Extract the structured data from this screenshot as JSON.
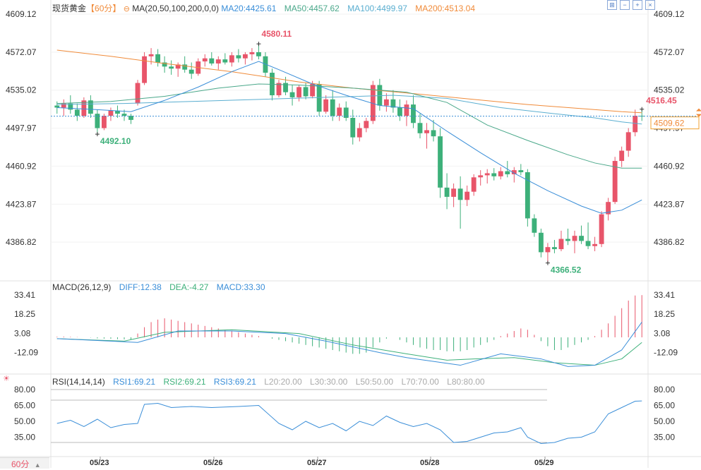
{
  "header": {
    "symbol": "现货黄金",
    "period_tag": "【60分】",
    "ma_label": "MA(20,50,100,200,0,0)",
    "ma20": "MA20:4425.61",
    "ma50": "MA50:4457.62",
    "ma100": "MA100:4499.97",
    "ma200": "MA200:4513.04"
  },
  "macd_header": {
    "label": "MACD(26,12,9)",
    "diff": "DIFF:12.38",
    "dea": "DEA:-4.27",
    "macd": "MACD:33.30"
  },
  "rsi_header": {
    "label": "RSI(14,14,14)",
    "rsi1": "RSI1:69.21",
    "rsi2": "RSI2:69.21",
    "rsi3": "RSI3:69.21",
    "l20": "L20:20.00",
    "l30": "L30:30.00",
    "l50": "L50:50.00",
    "l70": "L70:70.00",
    "l80": "L80:80.00"
  },
  "period_button": "60分",
  "current_price": "4509.62",
  "colors": {
    "up": "#e8556a",
    "down": "#3db07a",
    "ma20": "#3a8ed8",
    "ma50": "#4aa88a",
    "ma100": "#5aaed0",
    "ma200": "#f08b3a",
    "diff": "#3a8ed8",
    "dea": "#3db07a",
    "rsi": "#3a8ed8"
  },
  "chart_data": [
    {
      "type": "candlestick",
      "y_ticks": [
        "4609.12",
        "4572.07",
        "4535.02",
        "4497.97",
        "4460.92",
        "4423.87",
        "4386.82"
      ],
      "ylim": [
        4349.77,
        4609.12
      ],
      "x_labels": [
        "05/23",
        "05/26",
        "05/27",
        "05/28",
        "05/29"
      ],
      "annotations": [
        {
          "text": "4580.11",
          "value": 4580.11,
          "kind": "high"
        },
        {
          "text": "4492.10",
          "value": 4492.1,
          "kind": "low"
        },
        {
          "text": "4516.45",
          "value": 4516.45,
          "kind": "high"
        },
        {
          "text": "4366.52",
          "value": 4366.52,
          "kind": "low"
        }
      ],
      "last_price": 4509.62,
      "candles": [
        [
          4520,
          4524,
          4512,
          4518
        ],
        [
          4518,
          4526,
          4510,
          4522
        ],
        [
          4522,
          4530,
          4512,
          4516
        ],
        [
          4516,
          4522,
          4505,
          4510
        ],
        [
          4510,
          4528,
          4508,
          4525
        ],
        [
          4525,
          4530,
          4508,
          4512
        ],
        [
          4512,
          4516,
          4492,
          4498
        ],
        [
          4498,
          4512,
          4496,
          4510
        ],
        [
          4510,
          4518,
          4505,
          4515
        ],
        [
          4515,
          4520,
          4508,
          4512
        ],
        [
          4512,
          4516,
          4505,
          4510
        ],
        [
          4510,
          4512,
          4502,
          4506
        ],
        [
          4522,
          4545,
          4520,
          4542
        ],
        [
          4542,
          4572,
          4540,
          4568
        ],
        [
          4568,
          4576,
          4560,
          4570
        ],
        [
          4570,
          4575,
          4558,
          4562
        ],
        [
          4562,
          4568,
          4552,
          4558
        ],
        [
          4558,
          4564,
          4550,
          4556
        ],
        [
          4556,
          4562,
          4548,
          4560
        ],
        [
          4560,
          4568,
          4552,
          4555
        ],
        [
          4555,
          4562,
          4546,
          4551
        ],
        [
          4551,
          4566,
          4549,
          4563
        ],
        [
          4563,
          4570,
          4558,
          4566
        ],
        [
          4566,
          4572,
          4559,
          4561
        ],
        [
          4561,
          4568,
          4555,
          4565
        ],
        [
          4565,
          4571,
          4560,
          4562
        ],
        [
          4562,
          4572,
          4558,
          4569
        ],
        [
          4569,
          4575,
          4562,
          4566
        ],
        [
          4566,
          4572,
          4560,
          4570
        ],
        [
          4570,
          4576,
          4564,
          4572
        ],
        [
          4572,
          4580,
          4565,
          4568
        ],
        [
          4568,
          4572,
          4548,
          4552
        ],
        [
          4552,
          4556,
          4525,
          4530
        ],
        [
          4530,
          4545,
          4528,
          4542
        ],
        [
          4542,
          4548,
          4530,
          4533
        ],
        [
          4533,
          4540,
          4520,
          4528
        ],
        [
          4528,
          4540,
          4524,
          4538
        ],
        [
          4538,
          4542,
          4526,
          4529
        ],
        [
          4529,
          4544,
          4527,
          4541
        ],
        [
          4541,
          4544,
          4510,
          4514
        ],
        [
          4514,
          4530,
          4512,
          4526
        ],
        [
          4526,
          4535,
          4505,
          4510
        ],
        [
          4510,
          4522,
          4505,
          4518
        ],
        [
          4518,
          4524,
          4505,
          4508
        ],
        [
          4508,
          4516,
          4482,
          4489
        ],
        [
          4489,
          4503,
          4485,
          4498
        ],
        [
          4498,
          4508,
          4494,
          4505
        ],
        [
          4505,
          4544,
          4502,
          4540
        ],
        [
          4540,
          4546,
          4515,
          4520
        ],
        [
          4520,
          4532,
          4514,
          4526
        ],
        [
          4526,
          4535,
          4513,
          4518
        ],
        [
          4518,
          4526,
          4505,
          4510
        ],
        [
          4510,
          4525,
          4500,
          4521
        ],
        [
          4521,
          4530,
          4498,
          4503
        ],
        [
          4503,
          4512,
          4488,
          4493
        ],
        [
          4493,
          4503,
          4478,
          4496
        ],
        [
          4496,
          4506,
          4485,
          4490
        ],
        [
          4490,
          4498,
          4430,
          4440
        ],
        [
          4440,
          4454,
          4419,
          4431
        ],
        [
          4431,
          4444,
          4421,
          4439
        ],
        [
          4439,
          4451,
          4400,
          4428
        ],
        [
          4428,
          4442,
          4422,
          4436
        ],
        [
          4436,
          4453,
          4432,
          4450
        ],
        [
          4450,
          4457,
          4442,
          4452
        ],
        [
          4452,
          4458,
          4444,
          4454
        ],
        [
          4454,
          4459,
          4447,
          4451
        ],
        [
          4451,
          4460,
          4448,
          4456
        ],
        [
          4456,
          4466,
          4450,
          4453
        ],
        [
          4453,
          4460,
          4445,
          4457
        ],
        [
          4457,
          4463,
          4452,
          4455
        ],
        [
          4455,
          4458,
          4402,
          4410
        ],
        [
          4410,
          4414,
          4392,
          4396
        ],
        [
          4396,
          4400,
          4372,
          4377
        ],
        [
          4377,
          4386,
          4367,
          4382
        ],
        [
          4382,
          4389,
          4376,
          4380
        ],
        [
          4380,
          4398,
          4378,
          4390
        ],
        [
          4390,
          4400,
          4384,
          4388
        ],
        [
          4388,
          4398,
          4376,
          4393
        ],
        [
          4393,
          4403,
          4385,
          4388
        ],
        [
          4388,
          4406,
          4380,
          4383
        ],
        [
          4383,
          4392,
          4378,
          4385
        ],
        [
          4385,
          4417,
          4382,
          4414
        ],
        [
          4414,
          4430,
          4408,
          4426
        ],
        [
          4426,
          4470,
          4424,
          4466
        ],
        [
          4466,
          4480,
          4460,
          4476
        ],
        [
          4476,
          4498,
          4470,
          4494
        ],
        [
          4494,
          4516,
          4490,
          4510
        ],
        [
          4510,
          4516,
          4505,
          4509.62
        ]
      ],
      "ma20": [
        [
          0,
          4518
        ],
        [
          6,
          4516
        ],
        [
          11,
          4514
        ],
        [
          16,
          4525
        ],
        [
          21,
          4538
        ],
        [
          26,
          4553
        ],
        [
          30,
          4563
        ],
        [
          33,
          4555
        ],
        [
          38,
          4541
        ],
        [
          43,
          4530
        ],
        [
          48,
          4520
        ],
        [
          53,
          4517
        ],
        [
          58,
          4495
        ],
        [
          63,
          4474
        ],
        [
          68,
          4454
        ],
        [
          73,
          4437
        ],
        [
          78,
          4422
        ],
        [
          81,
          4415
        ],
        [
          84,
          4418
        ],
        [
          87,
          4428
        ]
      ],
      "ma50": [
        [
          0,
          4522
        ],
        [
          8,
          4524
        ],
        [
          16,
          4529
        ],
        [
          24,
          4537
        ],
        [
          30,
          4541
        ],
        [
          36,
          4540
        ],
        [
          44,
          4537
        ],
        [
          52,
          4533
        ],
        [
          58,
          4523
        ],
        [
          64,
          4501
        ],
        [
          70,
          4486
        ],
        [
          76,
          4472
        ],
        [
          80,
          4464
        ],
        [
          84,
          4459
        ],
        [
          87,
          4459
        ]
      ],
      "ma100": [
        [
          0,
          4521
        ],
        [
          10,
          4522
        ],
        [
          20,
          4524
        ],
        [
          30,
          4526
        ],
        [
          40,
          4528
        ],
        [
          50,
          4530
        ],
        [
          58,
          4527
        ],
        [
          66,
          4518
        ],
        [
          74,
          4512
        ],
        [
          80,
          4508
        ],
        [
          84,
          4504
        ],
        [
          87,
          4502
        ]
      ],
      "ma200": [
        [
          0,
          4574
        ],
        [
          8,
          4568
        ],
        [
          16,
          4561
        ],
        [
          26,
          4553
        ],
        [
          36,
          4543
        ],
        [
          44,
          4537
        ],
        [
          54,
          4531
        ],
        [
          62,
          4526
        ],
        [
          70,
          4521
        ],
        [
          78,
          4517
        ],
        [
          84,
          4514
        ],
        [
          87,
          4513
        ]
      ]
    },
    {
      "type": "macd",
      "y_ticks": [
        "33.41",
        "18.25",
        "3.08",
        "-12.09"
      ],
      "ylim": [
        -27.26,
        33.41
      ],
      "hist": [
        0.5,
        0.6,
        0.4,
        0.2,
        0.0,
        -0.2,
        -0.8,
        -1.0,
        -1.1,
        -1.4,
        -1.6,
        -1.6,
        3,
        8,
        12,
        14,
        15,
        14,
        13,
        12,
        11,
        10,
        9,
        8,
        7,
        6,
        5,
        4,
        3,
        2,
        1,
        0,
        -1,
        -2,
        -3,
        -4,
        -5,
        -6,
        -7,
        -8,
        -9,
        -10,
        -11,
        -12,
        -13,
        -13,
        -12,
        -8,
        -4,
        -1,
        0,
        -2,
        -4,
        -6,
        -8,
        -9,
        -10,
        -10,
        -11,
        -11,
        -11,
        -10,
        -8,
        -6,
        -4,
        -2,
        1,
        3,
        5,
        7,
        6,
        2,
        -3,
        -7,
        -10,
        -10,
        -8,
        -6,
        -4,
        -2,
        1,
        6,
        11,
        17,
        23,
        29,
        33,
        33.3
      ],
      "diff": [
        [
          0,
          -1
        ],
        [
          8,
          -3
        ],
        [
          12,
          -4
        ],
        [
          18,
          5
        ],
        [
          26,
          5
        ],
        [
          34,
          3
        ],
        [
          40,
          -3
        ],
        [
          48,
          -12
        ],
        [
          52,
          -16
        ],
        [
          56,
          -19
        ],
        [
          60,
          -22
        ],
        [
          66,
          -13
        ],
        [
          72,
          -17
        ],
        [
          76,
          -23
        ],
        [
          80,
          -22
        ],
        [
          84,
          -10
        ],
        [
          87,
          12
        ]
      ],
      "dea": [
        [
          0,
          -1
        ],
        [
          10,
          -3
        ],
        [
          16,
          4
        ],
        [
          26,
          6
        ],
        [
          36,
          3
        ],
        [
          44,
          -6
        ],
        [
          52,
          -13
        ],
        [
          58,
          -18
        ],
        [
          62,
          -17
        ],
        [
          68,
          -16
        ],
        [
          74,
          -20
        ],
        [
          80,
          -22
        ],
        [
          84,
          -17
        ],
        [
          87,
          -4
        ]
      ]
    },
    {
      "type": "rsi",
      "y_ticks": [
        "80.00",
        "65.00",
        "50.00",
        "35.00"
      ],
      "ylim": [
        20,
        80
      ],
      "ref_lines": [
        80,
        70,
        30
      ],
      "values": [
        [
          0,
          48
        ],
        [
          2,
          51
        ],
        [
          4,
          45
        ],
        [
          6,
          52
        ],
        [
          8,
          44
        ],
        [
          10,
          47
        ],
        [
          12,
          48
        ],
        [
          13,
          66
        ],
        [
          15,
          67
        ],
        [
          17,
          63
        ],
        [
          20,
          64
        ],
        [
          23,
          63
        ],
        [
          27,
          64
        ],
        [
          30,
          65
        ],
        [
          33,
          48
        ],
        [
          35,
          42
        ],
        [
          37,
          50
        ],
        [
          39,
          44
        ],
        [
          41,
          48
        ],
        [
          43,
          41
        ],
        [
          45,
          50
        ],
        [
          47,
          46
        ],
        [
          49,
          55
        ],
        [
          51,
          49
        ],
        [
          53,
          45
        ],
        [
          55,
          48
        ],
        [
          57,
          42
        ],
        [
          59,
          30
        ],
        [
          61,
          31
        ],
        [
          63,
          35
        ],
        [
          65,
          39
        ],
        [
          67,
          40
        ],
        [
          69,
          44
        ],
        [
          70,
          35
        ],
        [
          72,
          29
        ],
        [
          74,
          30
        ],
        [
          76,
          34
        ],
        [
          78,
          35
        ],
        [
          80,
          40
        ],
        [
          82,
          57
        ],
        [
          84,
          63
        ],
        [
          86,
          69
        ],
        [
          87,
          69.21
        ]
      ]
    }
  ]
}
